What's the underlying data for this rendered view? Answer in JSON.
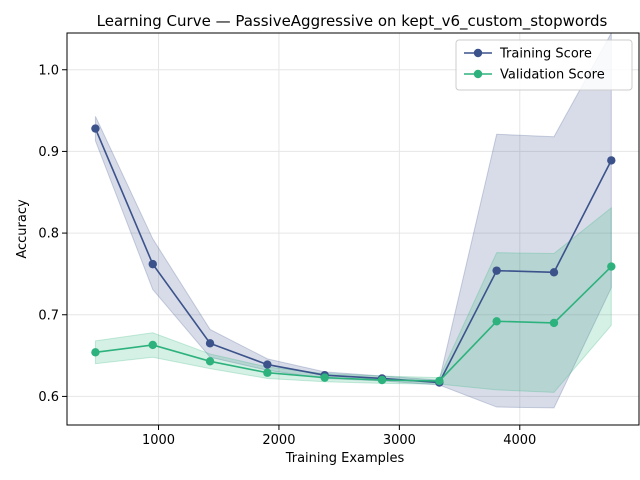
{
  "chart_data": {
    "type": "line",
    "title": "Learning Curve — PassiveAggressive on kept_v6_custom_stopwords",
    "xlabel": "Training Examples",
    "ylabel": "Accuracy",
    "xlim": [
      240,
      4990
    ],
    "ylim": [
      0.565,
      1.045
    ],
    "x_ticks": [
      1000,
      2000,
      3000,
      4000
    ],
    "y_ticks": [
      0.6,
      0.7,
      0.8,
      0.9,
      1.0
    ],
    "x_tick_labels": [
      "1000",
      "2000",
      "3000",
      "4000"
    ],
    "y_tick_labels": [
      "0.6",
      "0.7",
      "0.8",
      "0.9",
      "1.0"
    ],
    "grid": true,
    "legend_position": "top-right",
    "x": [
      476,
      952,
      1428,
      1904,
      2380,
      2856,
      3332,
      3808,
      4284,
      4760
    ],
    "series": [
      {
        "name": "Training Score",
        "color": "#3b528b",
        "values": [
          0.928,
          0.762,
          0.665,
          0.639,
          0.626,
          0.622,
          0.617,
          0.754,
          0.752,
          0.889
        ],
        "upper": [
          0.943,
          0.793,
          0.682,
          0.646,
          0.63,
          0.625,
          0.62,
          0.921,
          0.918,
          1.045
        ],
        "lower": [
          0.913,
          0.731,
          0.648,
          0.632,
          0.622,
          0.619,
          0.614,
          0.587,
          0.586,
          0.733
        ]
      },
      {
        "name": "Validation Score",
        "color": "#2db27d",
        "values": [
          0.654,
          0.663,
          0.643,
          0.629,
          0.623,
          0.62,
          0.619,
          0.692,
          0.69,
          0.759
        ],
        "upper": [
          0.668,
          0.678,
          0.652,
          0.636,
          0.628,
          0.625,
          0.623,
          0.776,
          0.775,
          0.831
        ],
        "lower": [
          0.64,
          0.648,
          0.634,
          0.622,
          0.618,
          0.616,
          0.615,
          0.608,
          0.605,
          0.687
        ]
      }
    ]
  }
}
